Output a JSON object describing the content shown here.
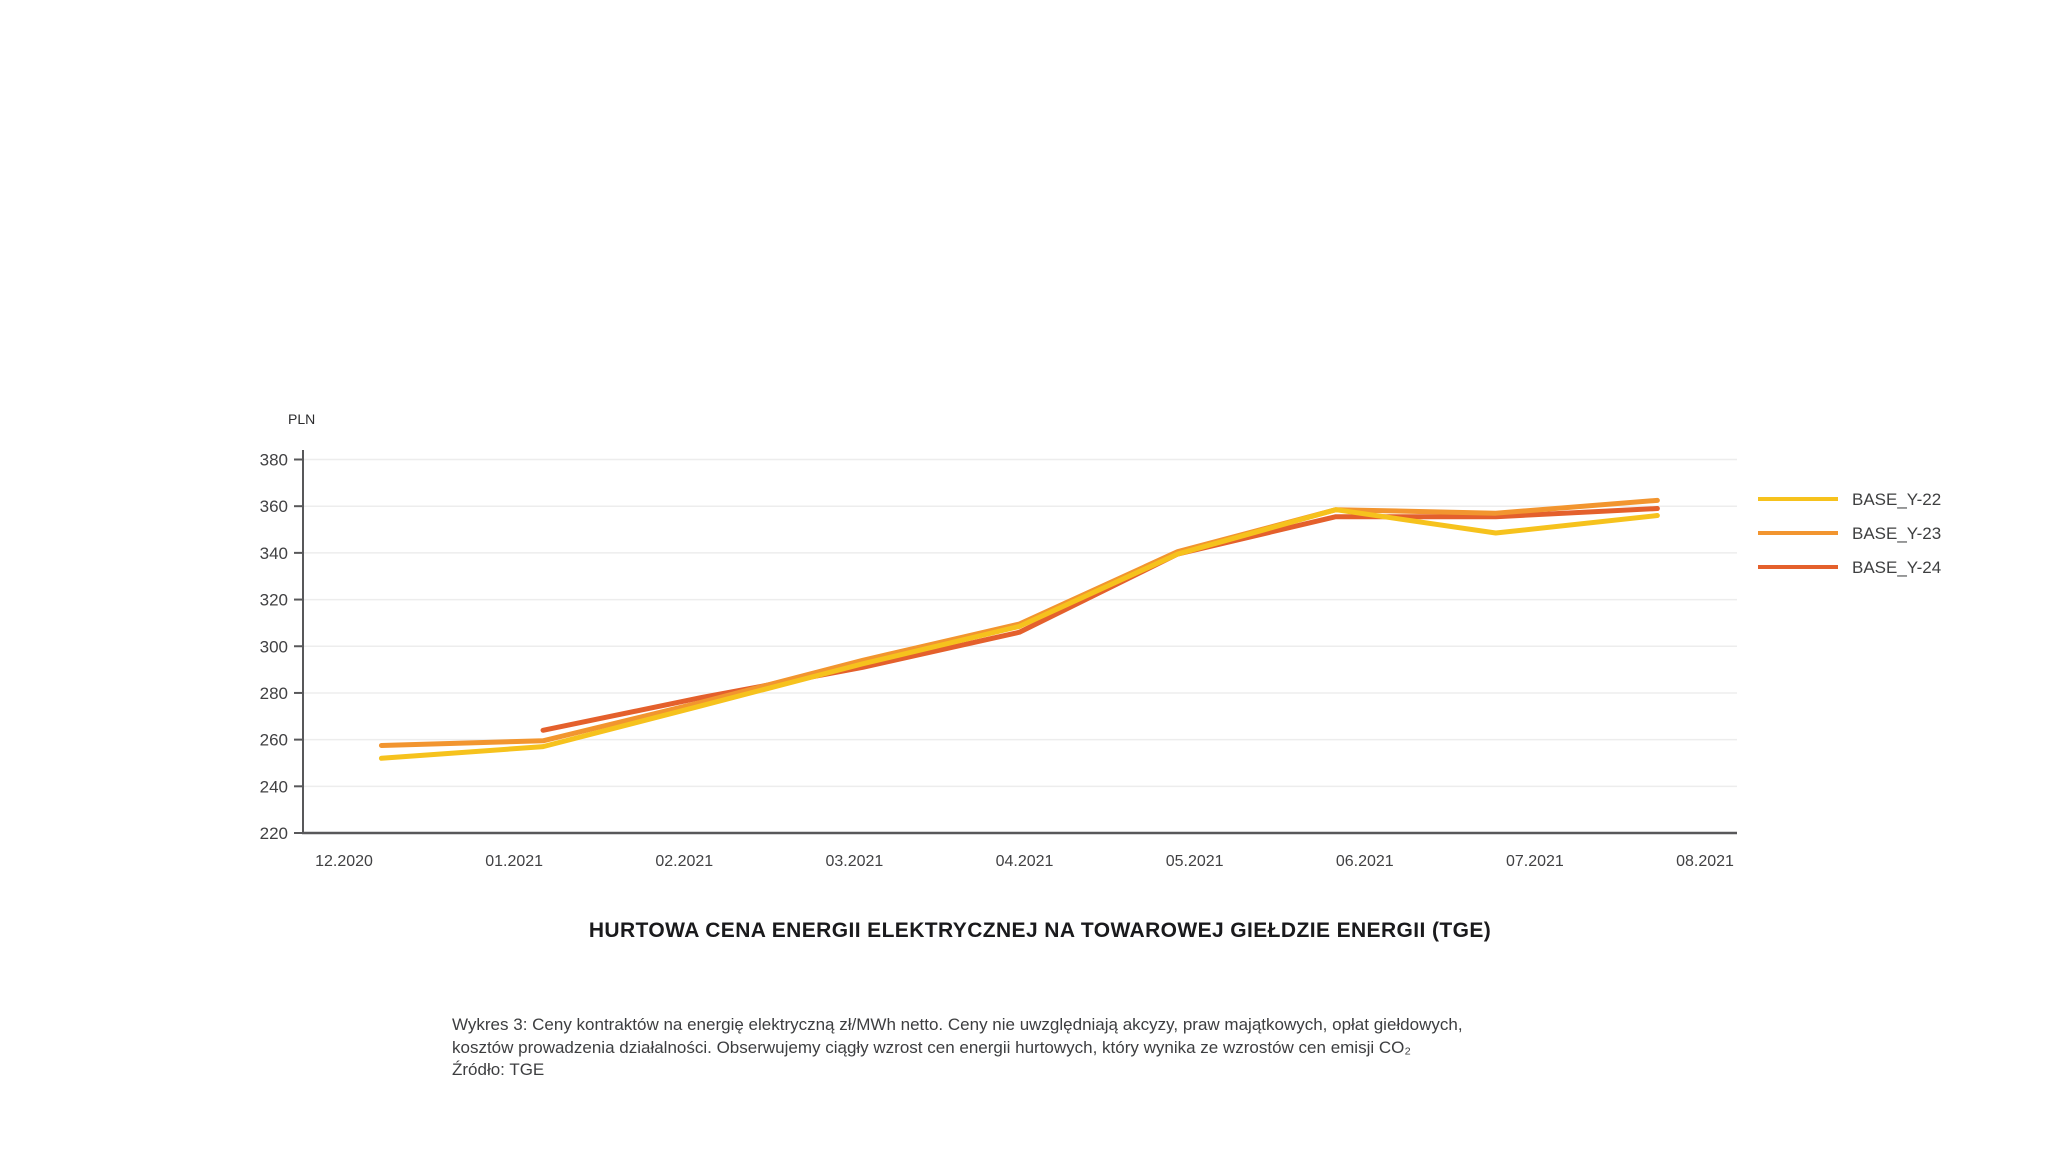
{
  "title": "HURTOWA CENA ENERGII ELEKTRYCZNEJ NA TOWAROWEJ GIEŁDZIE ENERGII (TGE)",
  "caption": {
    "line1": "Wykres 3: Ceny kontraktów na energię elektryczną zł/MWh netto. Ceny nie uwzględniają akcyzy, praw majątkowych, opłat giełdowych,",
    "line2": "kosztów prowadzenia działalności. Obserwujemy ciągły wzrost cen energii hurtowych, który wynika ze wzrostów cen emisji CO₂",
    "line3": "Źródło: TGE"
  },
  "colors": {
    "axis": "#58585a",
    "grid": "#ededed",
    "tick_text": "#414143",
    "legend_text": "#3f4041",
    "series_yellow": "#f6c21d",
    "series_orange": "#f2952f",
    "series_dark_orange": "#e4602c"
  },
  "chart_data": {
    "type": "line",
    "title": "HURTOWA CENA ENERGII ELEKTRYCZNEJ NA TOWAROWEJ GIEŁDZIE ENERGII (TGE)",
    "unit_label": "PLN",
    "xlabel": "",
    "ylabel": "PLN",
    "ylim": [
      220,
      380
    ],
    "y_ticks": [
      220,
      240,
      260,
      280,
      300,
      320,
      340,
      360,
      380
    ],
    "x_tick_labels": [
      "12.2020",
      "01.2021",
      "02.2021",
      "03.2021",
      "04.2021",
      "05.2021",
      "06.2021",
      "07.2021",
      "08.2021"
    ],
    "grid": "horizontal-only",
    "legend_position": "right",
    "series": [
      {
        "name": "BASE_Y-22",
        "color": "#f6c21d",
        "points": [
          [
            0.22,
            252
          ],
          [
            1.17,
            257
          ],
          [
            2.1,
            274.5
          ],
          [
            3.05,
            292.5
          ],
          [
            3.97,
            308.5
          ],
          [
            4.9,
            339.5
          ],
          [
            5.83,
            358.5
          ],
          [
            6.77,
            348.5
          ],
          [
            7.72,
            356
          ]
        ]
      },
      {
        "name": "BASE_Y-23",
        "color": "#f2952f",
        "points": [
          [
            0.22,
            257.5
          ],
          [
            1.17,
            259.5
          ],
          [
            2.1,
            276
          ],
          [
            3.05,
            294
          ],
          [
            3.97,
            309.5
          ],
          [
            4.9,
            340.5
          ],
          [
            5.83,
            358.5
          ],
          [
            6.77,
            357
          ],
          [
            7.72,
            362.5
          ]
        ]
      },
      {
        "name": "BASE_Y-24",
        "color": "#e4602c",
        "points": [
          [
            1.17,
            264
          ],
          [
            2.1,
            278
          ],
          [
            3.05,
            291
          ],
          [
            3.97,
            306
          ],
          [
            4.9,
            339.5
          ],
          [
            5.83,
            355.5
          ],
          [
            6.77,
            355.5
          ],
          [
            7.72,
            359
          ]
        ]
      }
    ]
  }
}
